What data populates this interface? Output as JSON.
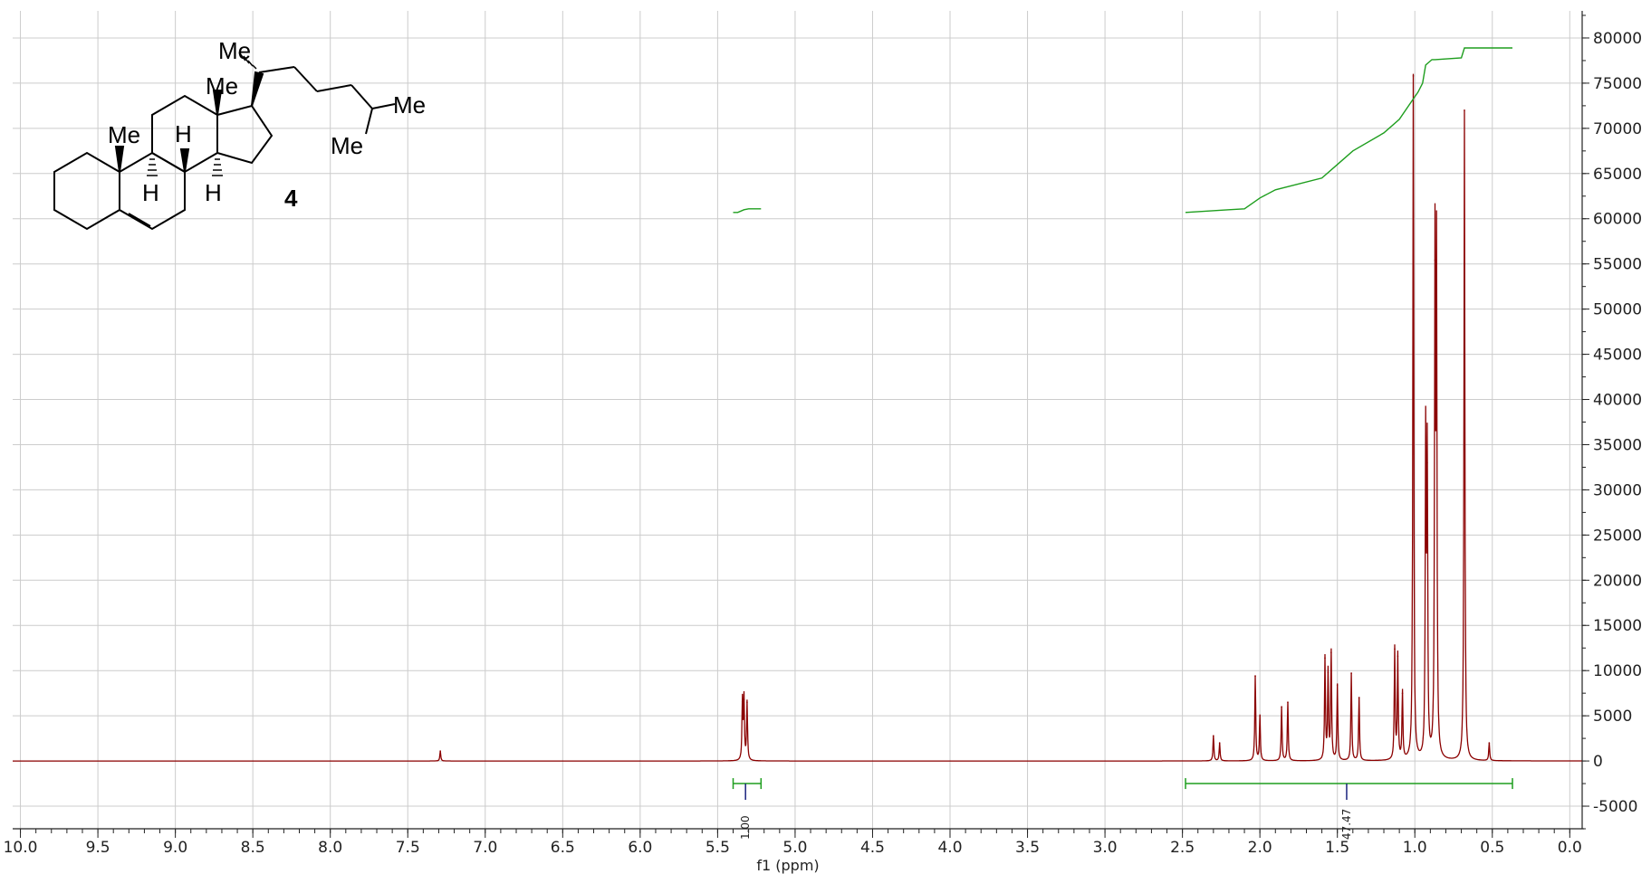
{
  "chart_data": {
    "type": "line",
    "xlabel": "f1 (ppm)",
    "ylabel": "",
    "x_reversed": true,
    "xlim": [
      10.05,
      -0.08
    ],
    "ylim": [
      -7500,
      83000
    ],
    "x_ticks": [
      10.0,
      9.5,
      9.0,
      8.5,
      8.0,
      7.5,
      7.0,
      6.5,
      6.0,
      5.5,
      5.0,
      4.5,
      4.0,
      3.5,
      3.0,
      2.5,
      2.0,
      1.5,
      1.0,
      0.5,
      0.0
    ],
    "x_tick_labels": [
      "10.0",
      "9.5",
      "9.0",
      "8.5",
      "8.0",
      "7.5",
      "7.0",
      "6.5",
      "6.0",
      "5.5",
      "5.0",
      "4.5",
      "4.0",
      "3.5",
      "3.0",
      "2.5",
      "2.0",
      "1.5",
      "1.0",
      "0.5",
      "0.0"
    ],
    "y_ticks": [
      -5000,
      0,
      5000,
      10000,
      15000,
      20000,
      25000,
      30000,
      35000,
      40000,
      45000,
      50000,
      55000,
      60000,
      65000,
      70000,
      75000,
      80000
    ],
    "y_tick_labels": [
      "-5000",
      "0",
      "5000",
      "10000",
      "15000",
      "20000",
      "25000",
      "30000",
      "35000",
      "40000",
      "45000",
      "50000",
      "55000",
      "60000",
      "65000",
      "70000",
      "75000",
      "80000"
    ],
    "grid": true,
    "colors": {
      "spectrum": "#8b0000",
      "integral": "#1e9e1e",
      "integral_marker": "#1a237e",
      "grid": "#cccccc"
    },
    "peaks": [
      {
        "x": 7.29,
        "y": 1100
      },
      {
        "x": 5.34,
        "y": 6600
      },
      {
        "x": 5.33,
        "y": 6800
      },
      {
        "x": 5.31,
        "y": 6500
      },
      {
        "x": 2.3,
        "y": 2800
      },
      {
        "x": 2.26,
        "y": 2000
      },
      {
        "x": 2.03,
        "y": 9400
      },
      {
        "x": 2.0,
        "y": 5000
      },
      {
        "x": 1.86,
        "y": 6000
      },
      {
        "x": 1.82,
        "y": 6500
      },
      {
        "x": 1.58,
        "y": 11400
      },
      {
        "x": 1.56,
        "y": 9800
      },
      {
        "x": 1.54,
        "y": 12000
      },
      {
        "x": 1.5,
        "y": 8400
      },
      {
        "x": 1.41,
        "y": 9700
      },
      {
        "x": 1.36,
        "y": 7000
      },
      {
        "x": 1.13,
        "y": 12400
      },
      {
        "x": 1.11,
        "y": 11600
      },
      {
        "x": 1.08,
        "y": 7500
      },
      {
        "x": 1.01,
        "y": 75800
      },
      {
        "x": 0.93,
        "y": 35200
      },
      {
        "x": 0.92,
        "y": 33000
      },
      {
        "x": 0.87,
        "y": 55400
      },
      {
        "x": 0.86,
        "y": 54600
      },
      {
        "x": 0.68,
        "y": 72000
      },
      {
        "x": 0.52,
        "y": 2000
      }
    ],
    "integral_curves": [
      {
        "x": [
          5.4,
          5.37,
          5.33,
          5.3,
          5.22
        ],
        "y": [
          60700,
          60700,
          61000,
          61100,
          61100
        ]
      },
      {
        "x": [
          2.48,
          2.2,
          2.1,
          2.0,
          1.9,
          1.6,
          1.5,
          1.4,
          1.2,
          1.1,
          1.0,
          0.98,
          0.95,
          0.93,
          0.89,
          0.87,
          0.7,
          0.68,
          0.37
        ],
        "y": [
          60700,
          61000,
          61100,
          62300,
          63200,
          64500,
          66000,
          67500,
          69500,
          71000,
          73500,
          74000,
          75000,
          77000,
          77600,
          77600,
          77800,
          78900,
          78900
        ]
      }
    ],
    "integrals": [
      {
        "from": 5.4,
        "to": 5.22,
        "marker": 5.32,
        "label": "1.00"
      },
      {
        "from": 2.48,
        "to": 0.37,
        "marker": 1.44,
        "label": "47.47"
      }
    ]
  },
  "structure": {
    "labels": [
      "Me",
      "Me",
      "Me",
      "H",
      "H",
      "H",
      "Me",
      "Me"
    ],
    "compound_number": "4"
  }
}
